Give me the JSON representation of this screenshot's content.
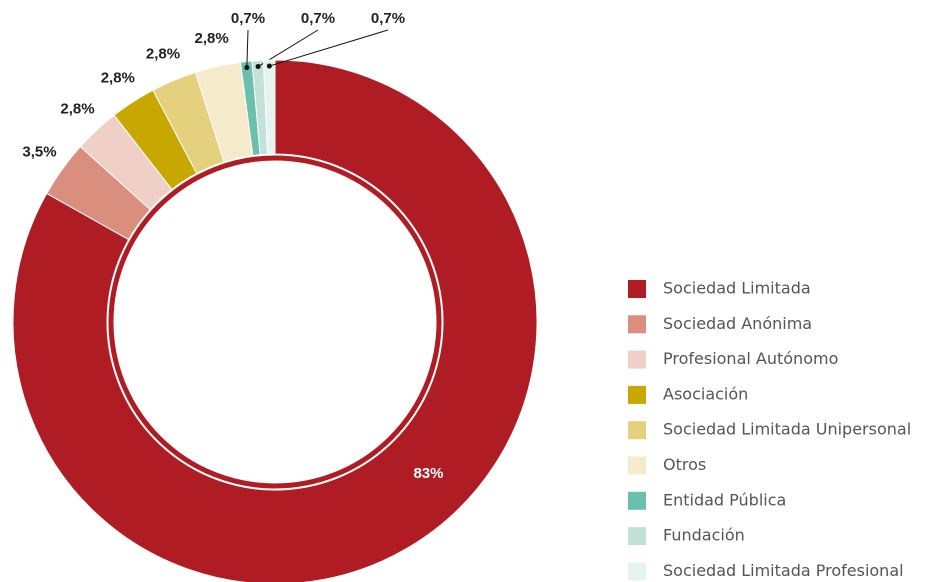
{
  "chart_data": {
    "type": "donut",
    "categories": [
      "Sociedad Limitada",
      "Sociedad Anónima",
      "Profesional Autónomo",
      "Asociación",
      "Sociedad Limitada Unipersonal",
      "Otros",
      "Entidad Pública",
      "Fundación",
      "Sociedad Limitada Profesional"
    ],
    "values": [
      83,
      3.5,
      2.8,
      2.8,
      2.8,
      2.8,
      0.7,
      0.7,
      0.7
    ],
    "value_labels": [
      "83%",
      "3,5%",
      "2,8%",
      "2,8%",
      "2,8%",
      "2,8%",
      "0,7%",
      "0,7%",
      "0,7%"
    ],
    "colors": [
      "#b01c24",
      "#d98e7e",
      "#f0cfc7",
      "#c8a800",
      "#e5d07e",
      "#f5ebcb",
      "#6bbfad",
      "#c2e2d8",
      "#e6f4ef"
    ],
    "legend": "right"
  }
}
